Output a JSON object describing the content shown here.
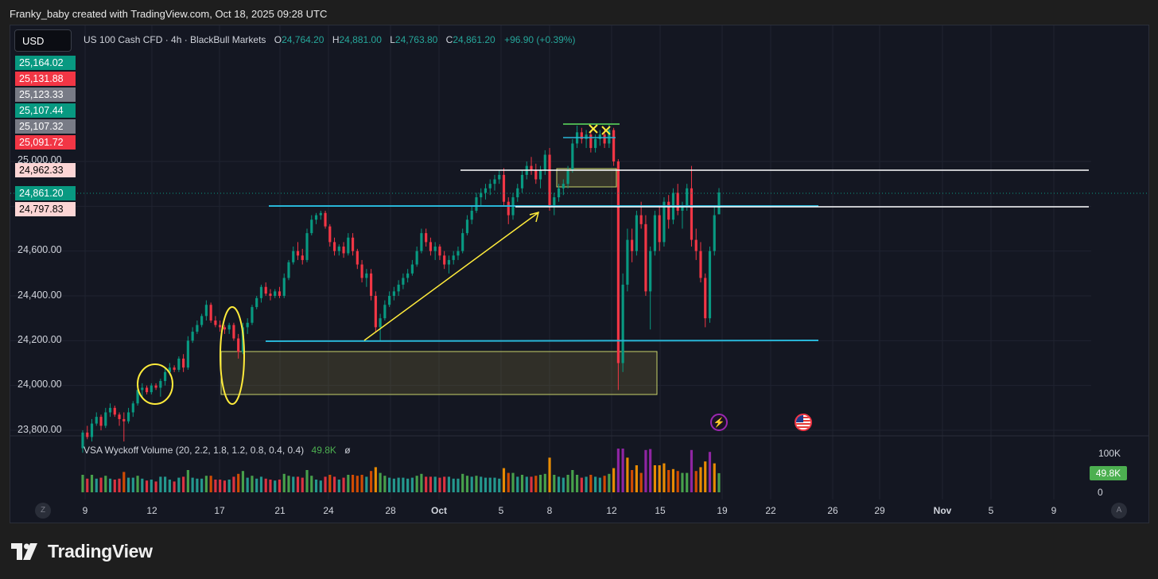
{
  "header": {
    "attribution": "Franky_baby created with TradingView.com, Oct 18, 2025 09:28 UTC"
  },
  "currency_button": "USD",
  "legend": {
    "symbol": "US 100 Cash CFD · 4h · BlackBull Markets",
    "open_label": "O",
    "open": "24,764.20",
    "high_label": "H",
    "high": "24,881.00",
    "low_label": "L",
    "low": "24,763.80",
    "close_label": "C",
    "close": "24,861.20",
    "change": "+96.90 (+0.39%)"
  },
  "volume_legend": {
    "name": "VSA Wyckoff Volume (20, 2.2, 1.8, 1.2, 0.8, 0.4, 0.4)",
    "value": "49.8K",
    "hide_icon": "ø"
  },
  "price_tags": [
    {
      "label": "25,164.02",
      "bg": "#089981",
      "fg": "#ffffff"
    },
    {
      "label": "25,131.88",
      "bg": "#f23645",
      "fg": "#ffffff"
    },
    {
      "label": "25,123.33",
      "bg": "#787b86",
      "fg": "#ffffff"
    },
    {
      "label": "25,107.44",
      "bg": "#089981",
      "fg": "#ffffff"
    },
    {
      "label": "25,107.32",
      "bg": "#787b86",
      "fg": "#ffffff"
    },
    {
      "label": "25,091.72",
      "bg": "#f23645",
      "fg": "#ffffff"
    },
    {
      "label": "24,962.33",
      "bg": "#fcd5d5",
      "fg": "#000000"
    },
    {
      "label": "24,861.20",
      "bg": "#089981",
      "fg": "#ffffff"
    },
    {
      "label": "24,797.83",
      "bg": "#fcd5d5",
      "fg": "#000000"
    }
  ],
  "y_axis_labels": [
    "25,000.00",
    "24,600.00",
    "24,400.00",
    "24,200.00",
    "24,000.00",
    "23,800.00"
  ],
  "x_axis_labels": [
    {
      "text": "9",
      "bold": false
    },
    {
      "text": "12",
      "bold": false
    },
    {
      "text": "17",
      "bold": false
    },
    {
      "text": "21",
      "bold": false
    },
    {
      "text": "24",
      "bold": false
    },
    {
      "text": "28",
      "bold": false
    },
    {
      "text": "Oct",
      "bold": true
    },
    {
      "text": "5",
      "bold": false
    },
    {
      "text": "8",
      "bold": false
    },
    {
      "text": "12",
      "bold": false
    },
    {
      "text": "15",
      "bold": false
    },
    {
      "text": "19",
      "bold": false
    },
    {
      "text": "22",
      "bold": false
    },
    {
      "text": "26",
      "bold": false
    },
    {
      "text": "29",
      "bold": false
    },
    {
      "text": "Nov",
      "bold": true
    },
    {
      "text": "5",
      "bold": false
    },
    {
      "text": "9",
      "bold": false
    }
  ],
  "left_button": "Z",
  "right_button": "A",
  "volume_axis": {
    "top": "100K",
    "zero": "0",
    "current": "49.8K"
  },
  "event_icons": [
    "lightning-icon",
    "us-flag-icon"
  ],
  "footer": {
    "brand": "TradingView"
  },
  "colors": {
    "up": "#089981",
    "down": "#f23645",
    "background": "#141722",
    "annotation_yellow": "#ffeb3b",
    "level_cyan": "#00bcd4"
  },
  "chart_data": {
    "type": "candlestick",
    "title": "US 100 Cash CFD · 4h · BlackBull Markets",
    "ylim": [
      23800,
      25200
    ],
    "grid": true,
    "levels": [
      24962.33,
      24797.83,
      24800,
      24200
    ],
    "ohlc": [
      [
        23720,
        23800,
        23700,
        23790
      ],
      [
        23790,
        23820,
        23760,
        23770
      ],
      [
        23770,
        23850,
        23750,
        23830
      ],
      [
        23830,
        23880,
        23820,
        23860
      ],
      [
        23860,
        23870,
        23800,
        23820
      ],
      [
        23820,
        23900,
        23810,
        23880
      ],
      [
        23880,
        23920,
        23860,
        23900
      ],
      [
        23900,
        23910,
        23860,
        23870
      ],
      [
        23870,
        23880,
        23820,
        23850
      ],
      [
        23850,
        23880,
        23750,
        23840
      ],
      [
        23840,
        23900,
        23830,
        23880
      ],
      [
        23880,
        23930,
        23860,
        23920
      ],
      [
        23920,
        24000,
        23910,
        23980
      ],
      [
        23980,
        24010,
        23950,
        23990
      ],
      [
        23990,
        24000,
        23960,
        23970
      ],
      [
        23970,
        24010,
        23960,
        24000
      ],
      [
        24000,
        24010,
        23980,
        23990
      ],
      [
        23990,
        24030,
        23950,
        24020
      ],
      [
        24020,
        24080,
        24000,
        24060
      ],
      [
        24060,
        24100,
        24050,
        24080
      ],
      [
        24080,
        24090,
        24060,
        24070
      ],
      [
        24070,
        24130,
        24060,
        24120
      ],
      [
        24120,
        24140,
        24060,
        24080
      ],
      [
        24080,
        24220,
        24070,
        24200
      ],
      [
        24200,
        24260,
        24190,
        24240
      ],
      [
        24240,
        24290,
        24230,
        24270
      ],
      [
        24270,
        24320,
        24260,
        24310
      ],
      [
        24310,
        24380,
        24290,
        24360
      ],
      [
        24360,
        24370,
        24280,
        24290
      ],
      [
        24290,
        24310,
        24260,
        24270
      ],
      [
        24270,
        24290,
        24240,
        24260
      ],
      [
        24260,
        24270,
        24230,
        24250
      ],
      [
        24250,
        24280,
        24230,
        24270
      ],
      [
        24270,
        24280,
        24200,
        24210
      ],
      [
        24210,
        24230,
        24120,
        24150
      ],
      [
        24150,
        24280,
        24140,
        24260
      ],
      [
        24260,
        24300,
        24230,
        24280
      ],
      [
        24280,
        24360,
        24270,
        24350
      ],
      [
        24350,
        24400,
        24340,
        24390
      ],
      [
        24390,
        24450,
        24370,
        24440
      ],
      [
        24440,
        24460,
        24400,
        24410
      ],
      [
        24410,
        24430,
        24380,
        24400
      ],
      [
        24400,
        24430,
        24390,
        24420
      ],
      [
        24420,
        24440,
        24390,
        24400
      ],
      [
        24400,
        24500,
        24390,
        24480
      ],
      [
        24480,
        24560,
        24470,
        24550
      ],
      [
        24550,
        24620,
        24540,
        24600
      ],
      [
        24600,
        24640,
        24560,
        24580
      ],
      [
        24580,
        24610,
        24540,
        24560
      ],
      [
        24560,
        24700,
        24550,
        24680
      ],
      [
        24680,
        24760,
        24670,
        24740
      ],
      [
        24740,
        24770,
        24720,
        24760
      ],
      [
        24760,
        24780,
        24740,
        24770
      ],
      [
        24770,
        24780,
        24700,
        24710
      ],
      [
        24710,
        24720,
        24620,
        24640
      ],
      [
        24640,
        24660,
        24580,
        24600
      ],
      [
        24600,
        24630,
        24580,
        24620
      ],
      [
        24620,
        24640,
        24570,
        24590
      ],
      [
        24590,
        24680,
        24580,
        24660
      ],
      [
        24660,
        24680,
        24580,
        24600
      ],
      [
        24600,
        24610,
        24520,
        24540
      ],
      [
        24540,
        24560,
        24460,
        24480
      ],
      [
        24480,
        24520,
        24440,
        24500
      ],
      [
        24500,
        24520,
        24380,
        24400
      ],
      [
        24400,
        24420,
        24240,
        24260
      ],
      [
        24260,
        24320,
        24200,
        24300
      ],
      [
        24300,
        24380,
        24290,
        24360
      ],
      [
        24360,
        24420,
        24350,
        24400
      ],
      [
        24400,
        24440,
        24380,
        24420
      ],
      [
        24420,
        24470,
        24400,
        24450
      ],
      [
        24450,
        24500,
        24430,
        24480
      ],
      [
        24480,
        24520,
        24460,
        24500
      ],
      [
        24500,
        24560,
        24490,
        24540
      ],
      [
        24540,
        24620,
        24530,
        24600
      ],
      [
        24600,
        24700,
        24590,
        24680
      ],
      [
        24680,
        24700,
        24620,
        24640
      ],
      [
        24640,
        24660,
        24580,
        24600
      ],
      [
        24600,
        24640,
        24560,
        24620
      ],
      [
        24620,
        24630,
        24560,
        24580
      ],
      [
        24580,
        24600,
        24520,
        24540
      ],
      [
        24540,
        24580,
        24500,
        24560
      ],
      [
        24560,
        24600,
        24540,
        24580
      ],
      [
        24580,
        24620,
        24560,
        24600
      ],
      [
        24600,
        24700,
        24590,
        24680
      ],
      [
        24680,
        24760,
        24670,
        24740
      ],
      [
        24740,
        24800,
        24720,
        24780
      ],
      [
        24780,
        24860,
        24770,
        24840
      ],
      [
        24840,
        24880,
        24800,
        24860
      ],
      [
        24860,
        24900,
        24830,
        24880
      ],
      [
        24880,
        24920,
        24850,
        24900
      ],
      [
        24900,
        24940,
        24870,
        24920
      ],
      [
        24920,
        24960,
        24900,
        24940
      ],
      [
        24940,
        24970,
        24800,
        24820
      ],
      [
        24820,
        24840,
        24720,
        24760
      ],
      [
        24760,
        24860,
        24740,
        24840
      ],
      [
        24840,
        24900,
        24820,
        24880
      ],
      [
        24880,
        24960,
        24860,
        24940
      ],
      [
        24940,
        25000,
        24920,
        24980
      ],
      [
        24980,
        25020,
        24940,
        24960
      ],
      [
        24960,
        24990,
        24900,
        24920
      ],
      [
        24920,
        24980,
        24880,
        24960
      ],
      [
        24960,
        25050,
        24940,
        25030
      ],
      [
        25030,
        25060,
        24780,
        24800
      ],
      [
        24800,
        24860,
        24760,
        24840
      ],
      [
        24840,
        24900,
        24820,
        24880
      ],
      [
        24880,
        24920,
        24850,
        24900
      ],
      [
        24900,
        24980,
        24880,
        24960
      ],
      [
        24960,
        25100,
        24950,
        25080
      ],
      [
        25080,
        25160,
        25060,
        25130
      ],
      [
        25130,
        25150,
        25080,
        25100
      ],
      [
        25100,
        25140,
        25060,
        25120
      ],
      [
        25120,
        25140,
        25040,
        25060
      ],
      [
        25060,
        25120,
        25040,
        25100
      ],
      [
        25100,
        25140,
        25070,
        25120
      ],
      [
        25120,
        25150,
        25060,
        25080
      ],
      [
        25080,
        25170,
        25060,
        25140
      ],
      [
        25140,
        25150,
        24980,
        25000
      ],
      [
        25000,
        25010,
        23980,
        24100
      ],
      [
        24100,
        24500,
        24060,
        24450
      ],
      [
        24450,
        24700,
        24420,
        24650
      ],
      [
        24650,
        24700,
        24550,
        24600
      ],
      [
        24600,
        24780,
        24580,
        24760
      ],
      [
        24760,
        24820,
        24700,
        24720
      ],
      [
        24720,
        24760,
        24400,
        24420
      ],
      [
        24420,
        24620,
        24250,
        24600
      ],
      [
        24600,
        24780,
        24580,
        24760
      ],
      [
        24760,
        24800,
        24600,
        24640
      ],
      [
        24640,
        24840,
        24620,
        24820
      ],
      [
        24820,
        24850,
        24700,
        24740
      ],
      [
        24740,
        24880,
        24720,
        24860
      ],
      [
        24860,
        24900,
        24760,
        24780
      ],
      [
        24780,
        24820,
        24700,
        24800
      ],
      [
        24800,
        24900,
        24780,
        24880
      ],
      [
        24880,
        24980,
        24620,
        24650
      ],
      [
        24650,
        24700,
        24560,
        24600
      ],
      [
        24600,
        24640,
        24460,
        24480
      ],
      [
        24480,
        24500,
        24260,
        24300
      ],
      [
        24300,
        24620,
        24280,
        24600
      ],
      [
        24600,
        24800,
        24580,
        24760
      ],
      [
        24764.2,
        24881,
        24763.8,
        24861.2
      ]
    ],
    "volume_max_label": "100K"
  }
}
